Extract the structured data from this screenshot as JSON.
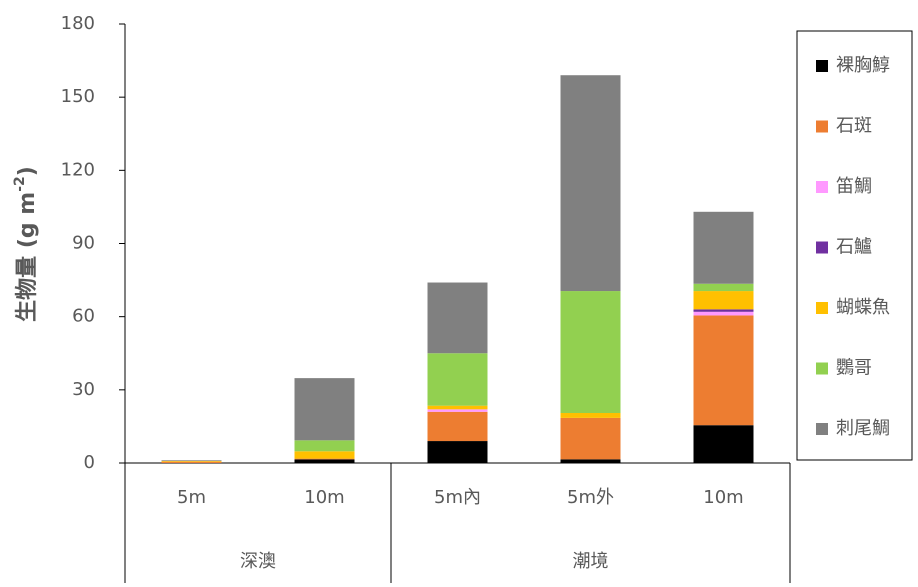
{
  "chart_data": {
    "type": "stacked_bar",
    "ylabel": {
      "text": "生物量 (g m",
      "superscript": "-2",
      "suffix": ")"
    },
    "categories": [
      "5m",
      "10m",
      "5m內",
      "5m外",
      "10m"
    ],
    "category_groups": [
      "深澳",
      "深澳",
      "潮境",
      "潮境",
      "潮境"
    ],
    "ylim": [
      0,
      180
    ],
    "yticks": [
      0,
      30,
      60,
      90,
      120,
      150,
      180
    ],
    "legend": "right",
    "series": [
      {
        "name": "裸胸鯙",
        "color": "#000000",
        "values": [
          0,
          1.5,
          9,
          1.5,
          15.5
        ]
      },
      {
        "name": "石斑",
        "color": "#ed7d31",
        "values": [
          0.5,
          0.3,
          12,
          17,
          45
        ]
      },
      {
        "name": "笛鯛",
        "color": "#ff99ff",
        "values": [
          0,
          0,
          1,
          0,
          1.5
        ]
      },
      {
        "name": "石鱸",
        "color": "#7030a0",
        "values": [
          0,
          0,
          0,
          0,
          1
        ]
      },
      {
        "name": "蝴蝶魚",
        "color": "#ffc000",
        "values": [
          0.3,
          3,
          1.5,
          2,
          7.5
        ]
      },
      {
        "name": "鸚哥",
        "color": "#92d050",
        "values": [
          0,
          4.5,
          21.5,
          50,
          3
        ]
      },
      {
        "name": "刺尾鯛",
        "color": "#808080",
        "values": [
          0.3,
          25.5,
          29,
          88.5,
          29.5
        ]
      }
    ]
  }
}
